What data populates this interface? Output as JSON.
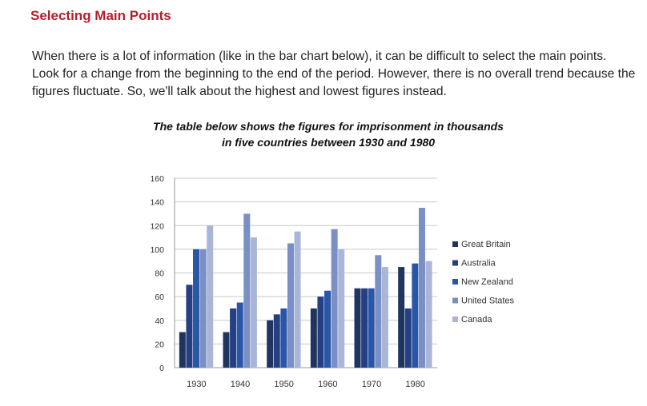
{
  "page": {
    "title": "Selecting Main Points",
    "intro": "When there is a lot of information (like in the bar chart below), it can be difficult to select the main points. Look for a change from the beginning to the end of the period. However, there is no overall trend because the figures fluctuate. So, we'll talk about the highest and lowest figures instead."
  },
  "chart_caption": {
    "line1": "The table below shows the figures for imprisonment in thousands",
    "line2": "in five countries between 1930 and 1980"
  },
  "colors": {
    "title": "#b3212b",
    "series": [
      "#1f3560",
      "#243f82",
      "#2a56a8",
      "#7a8fc4",
      "#a9b6d8"
    ]
  },
  "chart_data": {
    "type": "bar",
    "title": "The table below shows the figures for imprisonment in thousands in five countries between 1930 and 1980",
    "xlabel": "",
    "ylabel": "",
    "categories": [
      "1930",
      "1940",
      "1950",
      "1960",
      "1970",
      "1980"
    ],
    "ylim": [
      0,
      160
    ],
    "yticks": [
      0,
      20,
      40,
      60,
      80,
      100,
      120,
      140,
      160
    ],
    "grid": true,
    "legend_position": "right",
    "series": [
      {
        "name": "Great Britain",
        "values": [
          30,
          30,
          40,
          50,
          67,
          85
        ]
      },
      {
        "name": "Australia",
        "values": [
          70,
          50,
          45,
          60,
          67,
          50
        ]
      },
      {
        "name": "New Zealand",
        "values": [
          100,
          55,
          50,
          65,
          67,
          88
        ]
      },
      {
        "name": "United States",
        "values": [
          100,
          130,
          105,
          117,
          95,
          135
        ]
      },
      {
        "name": "Canada",
        "values": [
          120,
          110,
          115,
          100,
          85,
          90
        ]
      }
    ]
  }
}
